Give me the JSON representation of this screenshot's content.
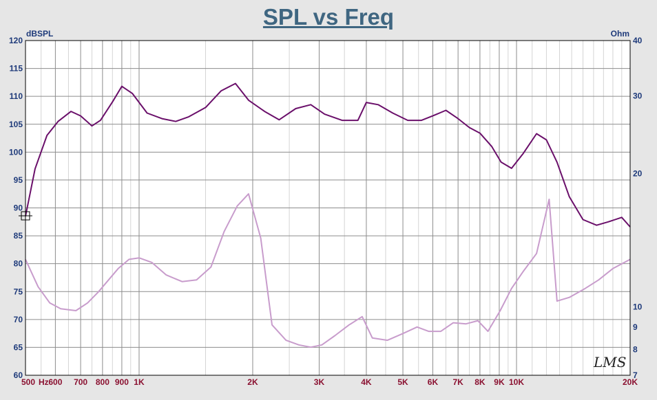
{
  "chart_data": {
    "type": "line",
    "title": "SPL vs Freq",
    "y_left_unit": "dBSPL",
    "y_right_unit": "Ohm",
    "x_unit": "Hz",
    "xlim": [
      500,
      20000
    ],
    "x_scale": "log",
    "ylim_left": [
      60,
      120
    ],
    "ylim_right": [
      7,
      40
    ],
    "y_right_scale": "log",
    "grid": true,
    "x_ticks": [
      {
        "value": 500,
        "label": "500"
      },
      {
        "value": 600,
        "label": "600"
      },
      {
        "value": 700,
        "label": "700"
      },
      {
        "value": 800,
        "label": "800"
      },
      {
        "value": 900,
        "label": "900"
      },
      {
        "value": 1000,
        "label": "1K"
      },
      {
        "value": 2000,
        "label": "2K"
      },
      {
        "value": 3000,
        "label": "3K"
      },
      {
        "value": 4000,
        "label": "4K"
      },
      {
        "value": 5000,
        "label": "5K"
      },
      {
        "value": 6000,
        "label": "6K"
      },
      {
        "value": 7000,
        "label": "7K"
      },
      {
        "value": 8000,
        "label": "8K"
      },
      {
        "value": 9000,
        "label": "9K"
      },
      {
        "value": 10000,
        "label": "10K"
      },
      {
        "value": 20000,
        "label": "20K"
      }
    ],
    "y_left_ticks": [
      "60",
      "65",
      "70",
      "75",
      "80",
      "85",
      "90",
      "95",
      "100",
      "105",
      "110",
      "115",
      "120"
    ],
    "y_right_ticks": [
      {
        "value": 7,
        "label": "7"
      },
      {
        "value": 8,
        "label": "8"
      },
      {
        "value": 9,
        "label": "9"
      },
      {
        "value": 10,
        "label": "10"
      },
      {
        "value": 20,
        "label": "20"
      },
      {
        "value": 30,
        "label": "30"
      },
      {
        "value": 40,
        "label": "40"
      }
    ],
    "series": [
      {
        "axis": "left",
        "color": "#6a0f6a",
        "x": [
          500,
          530,
          570,
          610,
          660,
          700,
          750,
          790,
          850,
          900,
          960,
          1050,
          1150,
          1250,
          1350,
          1500,
          1650,
          1800,
          1950,
          2150,
          2350,
          2600,
          2850,
          3100,
          3450,
          3800,
          4000,
          4300,
          4700,
          5150,
          5600,
          6000,
          6500,
          7000,
          7500,
          8000,
          8600,
          9100,
          9700,
          10400,
          11300,
          12000,
          12800,
          13800,
          15000,
          16300,
          17500,
          19000,
          20000
        ],
        "y": [
          88.5,
          97,
          103,
          105.5,
          107.3,
          106.5,
          104.7,
          105.7,
          109,
          111.8,
          110.5,
          107,
          106,
          105.5,
          106.3,
          108,
          111,
          112.3,
          109.3,
          107.3,
          105.8,
          107.8,
          108.5,
          106.8,
          105.7,
          105.7,
          108.9,
          108.5,
          107,
          105.7,
          105.7,
          106.5,
          107.5,
          106,
          104.4,
          103.4,
          101,
          98.2,
          97.1,
          99.7,
          103.3,
          102.2,
          98.2,
          92,
          87.9,
          86.9,
          87.5,
          88.3,
          86.6
        ]
      },
      {
        "axis": "right",
        "color": "#c89ccc",
        "x": [
          500,
          540,
          580,
          620,
          680,
          730,
          780,
          830,
          880,
          940,
          1000,
          1080,
          1180,
          1300,
          1420,
          1550,
          1680,
          1820,
          1950,
          2100,
          2250,
          2450,
          2650,
          2850,
          3050,
          3300,
          3600,
          3900,
          4150,
          4550,
          5000,
          5450,
          5850,
          6300,
          6800,
          7350,
          7900,
          8400,
          9050,
          9700,
          10400,
          11300,
          12200,
          12800,
          13800,
          15200,
          16500,
          18000,
          20000
        ],
        "y": [
          12.8,
          11.1,
          10.2,
          9.9,
          9.8,
          10.2,
          10.8,
          11.5,
          12.2,
          12.8,
          12.9,
          12.6,
          11.8,
          11.4,
          11.5,
          12.3,
          14.8,
          16.9,
          18.0,
          14.3,
          9.1,
          8.4,
          8.2,
          8.1,
          8.2,
          8.6,
          9.1,
          9.5,
          8.5,
          8.4,
          8.7,
          9.0,
          8.8,
          8.8,
          9.2,
          9.15,
          9.3,
          8.8,
          9.8,
          11.0,
          12.0,
          13.2,
          17.5,
          10.3,
          10.5,
          11.0,
          11.5,
          12.2,
          12.8
        ]
      }
    ]
  },
  "logo_text": "LMS"
}
